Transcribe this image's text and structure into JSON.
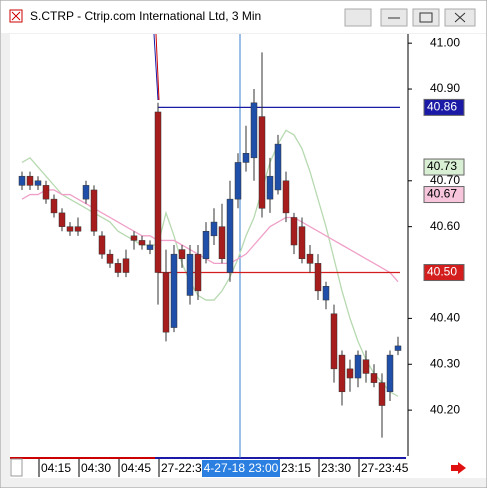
{
  "chart_data": {
    "type": "candlestick",
    "title": "S.CTRP - Ctrip.com International Ltd, 3 Min",
    "categories": [
      null,
      null,
      null,
      "04:15",
      null,
      null,
      null,
      null,
      "04:30",
      null,
      null,
      null,
      null,
      "04:45",
      null,
      null,
      null,
      null,
      "27-22:3",
      null,
      null,
      null,
      null,
      null,
      null,
      null,
      null,
      null,
      null,
      null,
      null,
      null,
      null,
      "23:15",
      null,
      null,
      null,
      null,
      "23:30",
      null,
      null,
      null,
      null,
      "27-23:45",
      null,
      null,
      null,
      null
    ],
    "crosshair_label": "4-27-18 23:00",
    "open": [
      40.69,
      40.71,
      40.69,
      40.69,
      40.66,
      40.63,
      40.6,
      40.6,
      40.66,
      40.68,
      40.58,
      40.54,
      40.52,
      40.53,
      40.58,
      40.57,
      40.55,
      40.85,
      40.5,
      40.38,
      40.55,
      40.45,
      40.54,
      40.53,
      40.58,
      40.6,
      40.5,
      40.66,
      40.74,
      40.75,
      40.84,
      40.66,
      40.68,
      40.7,
      40.62,
      40.6,
      40.54,
      40.52,
      40.44,
      40.41,
      40.32,
      40.29,
      40.27,
      40.31,
      40.28,
      40.26,
      40.24,
      40.33
    ],
    "high": [
      40.72,
      40.72,
      40.71,
      40.7,
      40.67,
      40.64,
      40.61,
      40.62,
      40.7,
      40.69,
      40.59,
      40.55,
      40.53,
      40.55,
      40.59,
      40.58,
      40.57,
      40.87,
      40.55,
      40.56,
      40.56,
      40.56,
      40.56,
      40.61,
      40.64,
      40.65,
      40.7,
      40.76,
      40.82,
      40.9,
      40.98,
      40.75,
      40.8,
      40.72,
      40.63,
      40.62,
      40.56,
      40.54,
      40.48,
      40.43,
      40.33,
      40.31,
      40.33,
      40.33,
      40.3,
      40.28,
      40.33,
      40.36
    ],
    "low": [
      40.68,
      40.68,
      40.68,
      40.65,
      40.62,
      40.59,
      40.58,
      40.58,
      40.65,
      40.58,
      40.53,
      40.51,
      40.49,
      40.49,
      40.55,
      40.55,
      40.54,
      40.43,
      40.35,
      40.37,
      40.51,
      40.43,
      40.44,
      40.52,
      40.56,
      40.52,
      40.48,
      40.64,
      40.72,
      40.7,
      40.62,
      40.63,
      40.67,
      40.61,
      40.54,
      40.52,
      40.5,
      40.44,
      40.42,
      40.26,
      40.21,
      40.24,
      40.25,
      40.26,
      40.25,
      40.14,
      40.22,
      40.32
    ],
    "close": [
      40.71,
      40.69,
      40.7,
      40.66,
      40.63,
      40.6,
      40.59,
      40.59,
      40.69,
      40.59,
      40.54,
      40.52,
      40.5,
      40.5,
      40.57,
      40.56,
      40.56,
      40.5,
      40.37,
      40.54,
      40.53,
      40.54,
      40.46,
      40.59,
      40.61,
      40.53,
      40.66,
      40.74,
      40.76,
      40.87,
      40.64,
      40.71,
      40.78,
      40.63,
      40.56,
      40.53,
      40.52,
      40.46,
      40.47,
      40.29,
      40.24,
      40.27,
      40.32,
      40.28,
      40.26,
      40.21,
      40.32,
      40.34
    ],
    "up_color": "#1f4fa8",
    "down_color": "#a51d1d",
    "overlays": [
      {
        "color": "#b6d9b0",
        "values": [
          40.74,
          40.75,
          40.73,
          40.71,
          40.69,
          40.67,
          40.66,
          40.65,
          40.64,
          40.63,
          40.62,
          40.61,
          40.59,
          40.58,
          40.57,
          40.56,
          40.56,
          40.56,
          40.63,
          40.58,
          40.52,
          40.48,
          40.45,
          40.44,
          40.44,
          40.46,
          40.49,
          40.53,
          40.58,
          40.62,
          40.68,
          40.74,
          40.78,
          40.81,
          40.8,
          40.77,
          40.72,
          40.66,
          40.6,
          40.53,
          40.46,
          40.4,
          40.35,
          40.31,
          40.28,
          40.26,
          40.24,
          40.23
        ]
      },
      {
        "color": "#f0a0c8",
        "values": [
          40.66,
          40.67,
          40.67,
          40.68,
          40.68,
          40.67,
          40.67,
          40.66,
          40.65,
          40.64,
          40.63,
          40.62,
          40.61,
          40.6,
          40.59,
          40.58,
          40.58,
          40.57,
          40.57,
          40.57,
          40.56,
          40.55,
          40.54,
          40.53,
          40.52,
          40.52,
          40.52,
          40.53,
          40.54,
          40.56,
          40.58,
          40.6,
          40.61,
          40.62,
          40.62,
          40.61,
          40.6,
          40.59,
          40.58,
          40.57,
          40.56,
          40.55,
          40.54,
          40.53,
          40.52,
          40.51,
          40.5,
          40.48
        ]
      }
    ],
    "price_tags": [
      {
        "value": 40.86,
        "label": "40.86",
        "color": "#1a1aa6",
        "text_color": "#ffffff",
        "line": true
      },
      {
        "value": 40.73,
        "label": "40.73",
        "color": "#d8efd4",
        "text_color": "#000000",
        "line": false
      },
      {
        "value": 40.67,
        "label": "40.67",
        "color": "#f7c6dc",
        "text_color": "#000000",
        "line": false
      },
      {
        "value": 40.5,
        "label": "40.50",
        "color": "#d41e1e",
        "text_color": "#ffffff",
        "line": true
      }
    ],
    "ylim": [
      40.1,
      41.02
    ],
    "yticks": [
      {
        "value": 41,
        "label": "41.00"
      },
      {
        "value": 40.9,
        "label": "40.90"
      },
      {
        "value": 40.7,
        "label": "40.70"
      },
      {
        "value": 40.6,
        "label": "40.60"
      },
      {
        "value": 40.4,
        "label": "40.40"
      },
      {
        "value": 40.3,
        "label": "40.30"
      },
      {
        "value": 40.2,
        "label": "40.20"
      }
    ]
  }
}
